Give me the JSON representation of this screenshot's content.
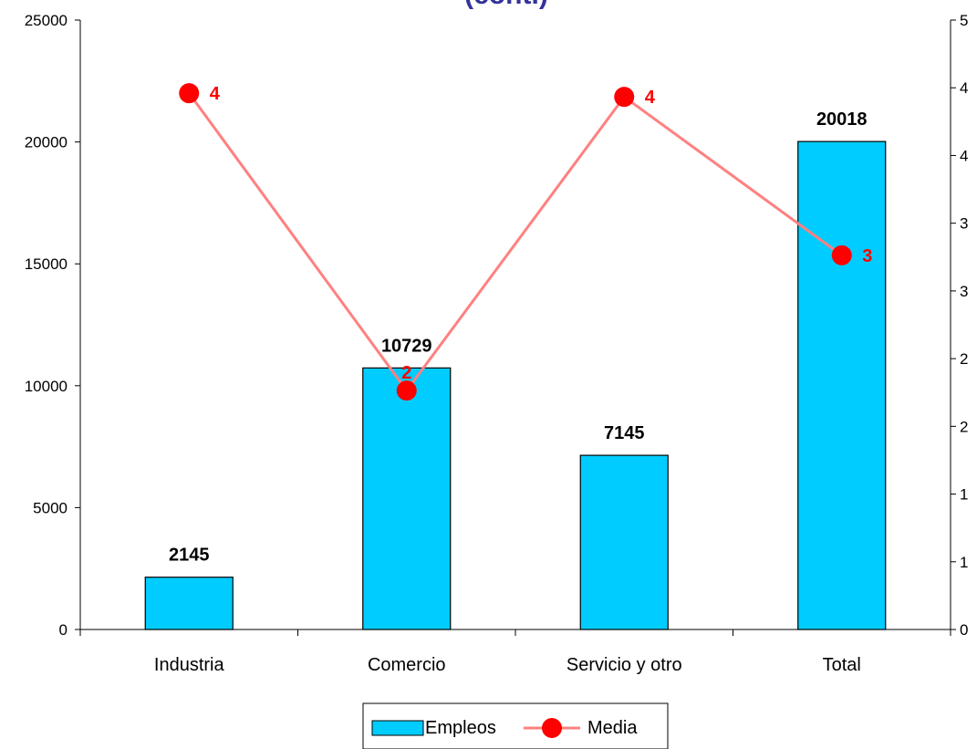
{
  "chart_data": {
    "type": "bar",
    "title": "(cont.)",
    "categories": [
      "Industria",
      "Comercio",
      "Servicio y otro",
      "Total"
    ],
    "series": [
      {
        "name": "Empleos",
        "kind": "bar",
        "axis": "left",
        "values": [
          2145,
          10729,
          7145,
          20018
        ],
        "labels": [
          "2145",
          "10729",
          "7145",
          "20018"
        ],
        "color": "#00ccff"
      },
      {
        "name": "Media",
        "kind": "line",
        "axis": "right",
        "values": [
          4.4,
          1.96,
          4.37,
          3.07
        ],
        "labels": [
          "4",
          "2",
          "4",
          "3"
        ],
        "color": "#ff0000",
        "line_color": "#ff8080"
      }
    ],
    "y_left": {
      "min": 0,
      "max": 25000,
      "ticks": [
        "0",
        "5000",
        "10000",
        "15000",
        "20000",
        "25000"
      ]
    },
    "y_right": {
      "min": 0,
      "max": 5,
      "ticks": [
        "0",
        "1",
        "1",
        "2",
        "2",
        "3",
        "3",
        "4",
        "4",
        "5"
      ]
    },
    "legend": {
      "position": "bottom",
      "entries": [
        "Empleos",
        "Media"
      ]
    },
    "grid": false
  }
}
